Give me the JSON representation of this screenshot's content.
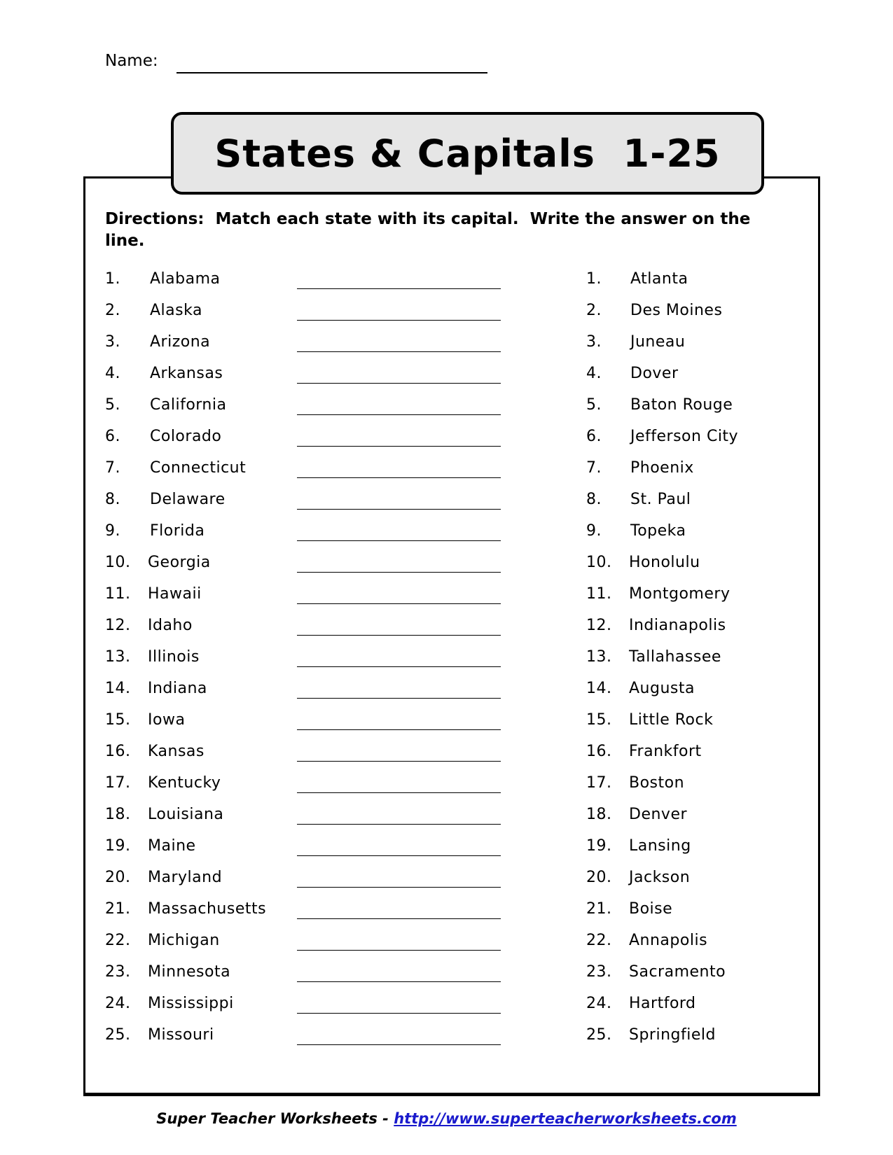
{
  "name_label": "Name:",
  "title": "States & Capitals  1-25",
  "directions": "Directions:  Match each state with its capital.  Write the answer on the line.",
  "states": [
    {
      "num": "1.",
      "name": "Alabama"
    },
    {
      "num": "2.",
      "name": "Alaska"
    },
    {
      "num": "3.",
      "name": "Arizona"
    },
    {
      "num": "4.",
      "name": "Arkansas"
    },
    {
      "num": "5.",
      "name": "California"
    },
    {
      "num": "6.",
      "name": "Colorado"
    },
    {
      "num": "7.",
      "name": "Connecticut"
    },
    {
      "num": "8.",
      "name": "Delaware"
    },
    {
      "num": "9.",
      "name": "Florida"
    },
    {
      "num": "10.",
      "name": "Georgia"
    },
    {
      "num": "11.",
      "name": "Hawaii"
    },
    {
      "num": "12.",
      "name": "Idaho"
    },
    {
      "num": "13.",
      "name": "Illinois"
    },
    {
      "num": "14.",
      "name": "Indiana"
    },
    {
      "num": "15.",
      "name": "Iowa"
    },
    {
      "num": "16.",
      "name": "Kansas"
    },
    {
      "num": "17.",
      "name": "Kentucky"
    },
    {
      "num": "18.",
      "name": "Louisiana"
    },
    {
      "num": "19.",
      "name": "Maine"
    },
    {
      "num": "20.",
      "name": "Maryland"
    },
    {
      "num": "21.",
      "name": "Massachusetts"
    },
    {
      "num": "22.",
      "name": "Michigan"
    },
    {
      "num": "23.",
      "name": "Minnesota"
    },
    {
      "num": "24.",
      "name": "Mississippi"
    },
    {
      "num": "25.",
      "name": "Missouri"
    }
  ],
  "capitals": [
    {
      "num": "1.",
      "name": "Atlanta"
    },
    {
      "num": "2.",
      "name": "Des Moines"
    },
    {
      "num": "3.",
      "name": "Juneau"
    },
    {
      "num": "4.",
      "name": "Dover"
    },
    {
      "num": "5.",
      "name": "Baton Rouge"
    },
    {
      "num": "6.",
      "name": "Jefferson City"
    },
    {
      "num": "7.",
      "name": "Phoenix"
    },
    {
      "num": "8.",
      "name": "St. Paul"
    },
    {
      "num": "9.",
      "name": "Topeka"
    },
    {
      "num": "10.",
      "name": "Honolulu"
    },
    {
      "num": "11.",
      "name": "Montgomery"
    },
    {
      "num": "12.",
      "name": "Indianapolis"
    },
    {
      "num": "13.",
      "name": "Tallahassee"
    },
    {
      "num": "14.",
      "name": "Augusta"
    },
    {
      "num": "15.",
      "name": "Little Rock"
    },
    {
      "num": "16.",
      "name": "Frankfort"
    },
    {
      "num": "17.",
      "name": "Boston"
    },
    {
      "num": "18.",
      "name": "Denver"
    },
    {
      "num": "19.",
      "name": "Lansing"
    },
    {
      "num": "20.",
      "name": "Jackson"
    },
    {
      "num": "21.",
      "name": "Boise"
    },
    {
      "num": "22.",
      "name": "Annapolis"
    },
    {
      "num": "23.",
      "name": "Sacramento"
    },
    {
      "num": "24.",
      "name": "Hartford"
    },
    {
      "num": "25.",
      "name": "Springfield"
    }
  ],
  "footer": {
    "brand": "Super Teacher Worksheets",
    "separator": " - ",
    "url": "http://www.superteacherworksheets.com",
    "link_color": "#1a1acc"
  }
}
